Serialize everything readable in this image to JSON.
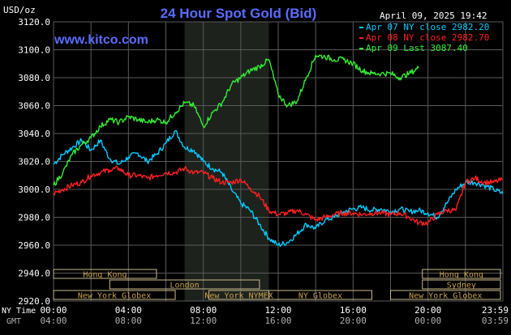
{
  "header": {
    "unit": "USD/oz",
    "title": "24 Hour Spot Gold (Bid)",
    "timestamp": "April 09, 2025 19:42",
    "site": "www.kitco.com"
  },
  "colors": {
    "background": "#000000",
    "grid": "#5a5a5a",
    "title": "#5a6cff",
    "site": "#5a6cff",
    "market_fill": "#c9b98a",
    "market_text": "#c8a050",
    "session_shade": "#1d221d"
  },
  "chart_data": {
    "type": "line",
    "title": "24 Hour Spot Gold (Bid)",
    "ylim": [
      2920,
      3120
    ],
    "ylabel": "USD/oz",
    "grid": true,
    "legend_position": "top-right",
    "y_ticks": [
      "3120.0",
      "3100.0",
      "3080.0",
      "3060.0",
      "3040.0",
      "3020.0",
      "3000.0",
      "2980.0",
      "2960.0",
      "2940.0",
      "2920.0"
    ],
    "x_ticks": [
      {
        "ny": "00:00",
        "gmt": "04:00"
      },
      {
        "ny": "04:00",
        "gmt": "08:00"
      },
      {
        "ny": "08:00",
        "gmt": "12:00"
      },
      {
        "ny": "12:00",
        "gmt": "16:00"
      },
      {
        "ny": "16:00",
        "gmt": "20:00"
      },
      {
        "ny": "20:00",
        "gmt": "00:00"
      },
      {
        "ny": "23:59",
        "gmt": "03:59"
      }
    ],
    "x_axis_labels": {
      "ny": "NY Time",
      "gmt": "GMT"
    },
    "highlight_hours": [
      7,
      11.5
    ],
    "series": [
      {
        "name": "Apr 07 NY close 2982.20",
        "legend": "Apr 07 NY close 2982.20",
        "color": "#00ccff",
        "x": [
          0,
          0.5,
          1,
          1.5,
          2,
          2.5,
          3,
          3.5,
          4,
          4.5,
          5,
          5.5,
          6,
          6.5,
          7,
          7.5,
          8,
          8.5,
          9,
          9.5,
          10,
          10.5,
          11,
          11.5,
          12,
          12.5,
          13,
          13.5,
          14,
          14.5,
          15,
          15.5,
          16,
          16.5,
          17,
          17.5,
          18,
          18.5,
          19,
          19.5,
          20,
          20.5,
          21,
          21.5,
          22,
          22.5,
          23,
          23.5,
          24
        ],
        "y": [
          3018,
          3025,
          3030,
          3035,
          3028,
          3035,
          3022,
          3018,
          3023,
          3026,
          3020,
          3025,
          3033,
          3042,
          3030,
          3028,
          3020,
          3015,
          3012,
          3000,
          2990,
          2985,
          2975,
          2965,
          2960,
          2962,
          2968,
          2975,
          2972,
          2978,
          2980,
          2984,
          2986,
          2987,
          2985,
          2986,
          2984,
          2986,
          2984,
          2985,
          2983,
          2980,
          2990,
          3000,
          3005,
          3005,
          3003,
          3000,
          2997
        ]
      },
      {
        "name": "Apr 08 NY close 2982.70",
        "legend": "Apr 08 NY close 2982.70",
        "color": "#ff2020",
        "x": [
          0,
          0.5,
          1,
          1.5,
          2,
          2.5,
          3,
          3.5,
          4,
          4.5,
          5,
          5.5,
          6,
          6.5,
          7,
          7.5,
          8,
          8.5,
          9,
          9.5,
          10,
          10.5,
          11,
          11.5,
          12,
          12.5,
          13,
          13.5,
          14,
          14.5,
          15,
          15.5,
          16,
          16.5,
          17,
          17.5,
          18,
          18.5,
          19,
          19.5,
          20,
          20.5,
          21,
          21.5,
          22,
          22.5,
          23,
          23.5,
          24
        ],
        "y": [
          2997,
          3000,
          3003,
          3005,
          3010,
          3012,
          3014,
          3015,
          3010,
          3010,
          3008,
          3010,
          3012,
          3012,
          3015,
          3012,
          3012,
          3008,
          3005,
          3005,
          3007,
          3001,
          2995,
          2985,
          2982,
          2983,
          2985,
          2982,
          2978,
          2980,
          2982,
          2983,
          2983,
          2982,
          2983,
          2983,
          2982,
          2983,
          2980,
          2976,
          2976,
          2982,
          2985,
          2985,
          3005,
          3008,
          3005,
          3005,
          3007
        ]
      },
      {
        "name": "Apr 09 Last 3087.40",
        "legend": "Apr 09 Last 3087.40",
        "color": "#33ee33",
        "x": [
          0,
          0.5,
          1,
          1.5,
          2,
          2.5,
          3,
          3.5,
          4,
          4.5,
          5,
          5.5,
          6,
          6.5,
          7,
          7.5,
          8,
          8.5,
          9,
          9.5,
          10,
          10.5,
          11,
          11.5,
          12,
          12.5,
          13,
          13.5,
          14,
          14.5,
          15,
          15.5,
          16,
          16.5,
          17,
          17.5,
          18,
          18.5,
          19,
          19.5
        ],
        "y": [
          3003,
          3012,
          3025,
          3032,
          3037,
          3045,
          3050,
          3048,
          3052,
          3050,
          3048,
          3050,
          3048,
          3055,
          3062,
          3060,
          3045,
          3055,
          3062,
          3075,
          3080,
          3085,
          3088,
          3093,
          3068,
          3060,
          3063,
          3080,
          3096,
          3095,
          3093,
          3093,
          3090,
          3085,
          3083,
          3083,
          3083,
          3080,
          3083,
          3087
        ]
      }
    ]
  },
  "markets": [
    {
      "name": "Hong Kong",
      "start": -1,
      "end": 5.5,
      "row": 0
    },
    {
      "name": "Hong Kong",
      "start": 19.7,
      "end": 24.5,
      "row": 0
    },
    {
      "name": "London",
      "start": 3,
      "end": 11,
      "row": 1
    },
    {
      "name": "Sydney",
      "start": 19.7,
      "end": 24.5,
      "row": 1
    },
    {
      "name": "New York Globex",
      "start": -1,
      "end": 6.5,
      "row": 2
    },
    {
      "name": "New York NYMEX",
      "start": 8.3,
      "end": 11.5,
      "row": 2
    },
    {
      "name": "NY Globex",
      "start": 11.5,
      "end": 17,
      "row": 2
    },
    {
      "name": "New York Globex",
      "start": 18,
      "end": 24.5,
      "row": 2
    }
  ]
}
